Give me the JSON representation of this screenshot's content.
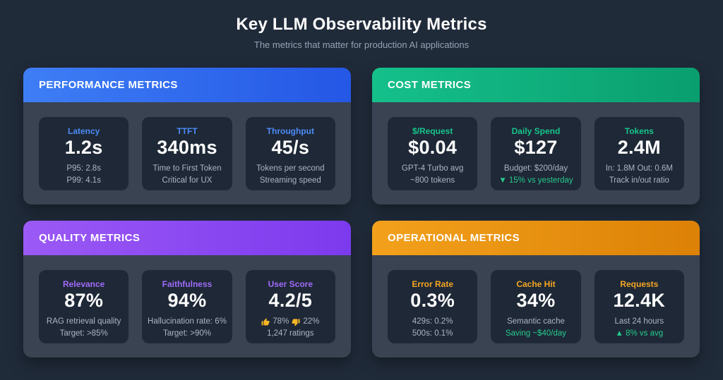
{
  "page": {
    "title": "Key LLM Observability Metrics",
    "subtitle": "The metrics that matter for production AI applications"
  },
  "colors": {
    "background": "#202b3a",
    "card_body": "#3a4352",
    "tile": "#1e2836",
    "value_text": "#ffffff",
    "detail_text": "#adb5c2",
    "positive": "#25c98c",
    "thumb": "#f5b625"
  },
  "cards": [
    {
      "id": "performance",
      "title": "PERFORMANCE METRICS",
      "header_gradient": [
        "#3e7ef5",
        "#2457e5"
      ],
      "accent": "#4d8cf8",
      "tiles": [
        {
          "label": "Latency",
          "value": "1.2s",
          "lines": [
            {
              "text": "P95: 2.8s"
            },
            {
              "text": "P99: 4.1s"
            }
          ]
        },
        {
          "label": "TTFT",
          "value": "340ms",
          "lines": [
            {
              "text": "Time to First Token"
            },
            {
              "text": "Critical for UX"
            }
          ]
        },
        {
          "label": "Throughput",
          "value": "45/s",
          "lines": [
            {
              "text": "Tokens per second"
            },
            {
              "text": "Streaming speed"
            }
          ]
        }
      ]
    },
    {
      "id": "cost",
      "title": "COST METRICS",
      "header_gradient": [
        "#15c08b",
        "#0a9e6e"
      ],
      "accent": "#17c58b",
      "tiles": [
        {
          "label": "$/Request",
          "value": "$0.04",
          "lines": [
            {
              "text": "GPT-4 Turbo avg"
            },
            {
              "text": "~800 tokens"
            }
          ]
        },
        {
          "label": "Daily Spend",
          "value": "$127",
          "lines": [
            {
              "text": "Budget: $200/day"
            },
            {
              "text": "▼ 15% vs yesterday",
              "positive": true
            }
          ]
        },
        {
          "label": "Tokens",
          "value": "2.4M",
          "lines": [
            {
              "text": "In: 1.8M Out: 0.6M"
            },
            {
              "text": "Track in/out ratio"
            }
          ]
        }
      ]
    },
    {
      "id": "quality",
      "title": "QUALITY METRICS",
      "header_gradient": [
        "#9b59f6",
        "#7c3aed"
      ],
      "accent": "#a06bf9",
      "tiles": [
        {
          "label": "Relevance",
          "value": "87%",
          "lines": [
            {
              "text": "RAG retrieval quality"
            },
            {
              "text": "Target: >85%"
            }
          ]
        },
        {
          "label": "Faithfulness",
          "value": "94%",
          "lines": [
            {
              "text": "Hallucination rate: 6%"
            },
            {
              "text": "Target: >90%"
            }
          ]
        },
        {
          "label": "User Score",
          "value": "4.2/5",
          "lines": [
            {
              "type": "thumbs",
              "up_icon": "thumbs-up-icon",
              "up_text": "78%",
              "down_icon": "thumbs-down-icon",
              "down_text": "22%"
            },
            {
              "text": "1,247 ratings"
            }
          ]
        }
      ]
    },
    {
      "id": "operational",
      "title": "OPERATIONAL METRICS",
      "header_gradient": [
        "#f3a11c",
        "#dc8106"
      ],
      "accent": "#f5a623",
      "tiles": [
        {
          "label": "Error Rate",
          "value": "0.3%",
          "lines": [
            {
              "text": "429s: 0.2%"
            },
            {
              "text": "500s: 0.1%"
            }
          ]
        },
        {
          "label": "Cache Hit",
          "value": "34%",
          "lines": [
            {
              "text": "Semantic cache"
            },
            {
              "text": "Saving ~$40/day",
              "positive": true
            }
          ]
        },
        {
          "label": "Requests",
          "value": "12.4K",
          "lines": [
            {
              "text": "Last 24 hours"
            },
            {
              "text": "▲ 8% vs avg",
              "positive": true
            }
          ]
        }
      ]
    }
  ]
}
